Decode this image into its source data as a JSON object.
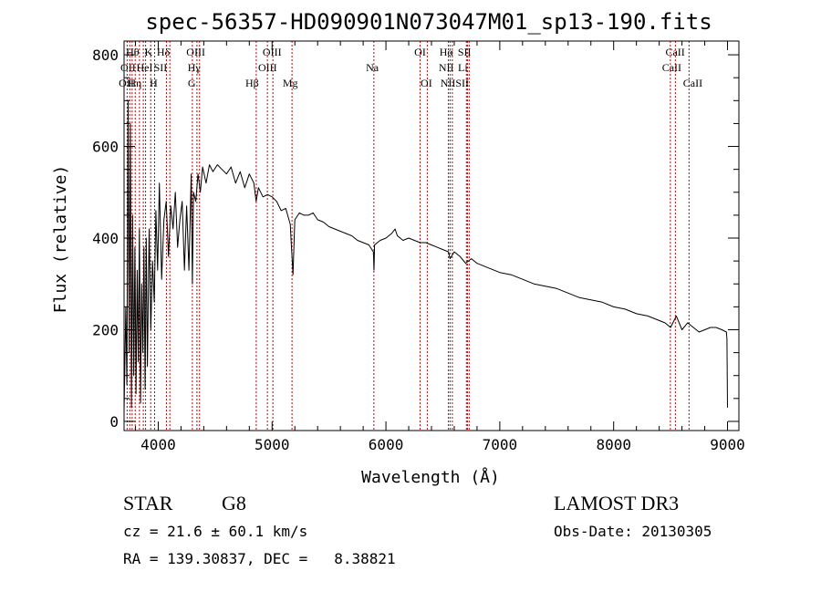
{
  "chart_data": {
    "type": "line",
    "title": "spec-56357-HD090901N073047M01_sp13-190.fits",
    "xlabel": "Wavelength (Å)",
    "ylabel": "Flux (relative)",
    "xlim": [
      3700,
      9100
    ],
    "ylim": [
      -20,
      830
    ],
    "x_ticks": [
      4000,
      5000,
      6000,
      7000,
      8000,
      9000
    ],
    "y_ticks": [
      0,
      200,
      400,
      600,
      800
    ],
    "x_tick_labels": [
      "4000",
      "5000",
      "6000",
      "7000",
      "8000",
      "9000"
    ],
    "y_tick_labels": [
      "0",
      "200",
      "400",
      "600",
      "800"
    ],
    "grid": false,
    "series": [
      {
        "color": "#000000",
        "x": [
          3700,
          3715,
          3725,
          3735,
          3745,
          3755,
          3765,
          3775,
          3785,
          3795,
          3805,
          3815,
          3825,
          3835,
          3845,
          3855,
          3865,
          3875,
          3885,
          3895,
          3905,
          3920,
          3935,
          3950,
          3965,
          3980,
          3995,
          4010,
          4030,
          4050,
          4070,
          4090,
          4110,
          4130,
          4150,
          4170,
          4190,
          4210,
          4230,
          4250,
          4270,
          4290,
          4300,
          4310,
          4330,
          4350,
          4370,
          4390,
          4420,
          4450,
          4480,
          4520,
          4560,
          4600,
          4640,
          4680,
          4720,
          4760,
          4800,
          4840,
          4860,
          4880,
          4920,
          4960,
          5000,
          5040,
          5080,
          5120,
          5160,
          5170,
          5180,
          5184,
          5190,
          5200,
          5240,
          5280,
          5320,
          5360,
          5400,
          5450,
          5500,
          5550,
          5600,
          5650,
          5700,
          5750,
          5800,
          5850,
          5890,
          5895,
          5900,
          5950,
          6000,
          6050,
          6080,
          6100,
          6150,
          6200,
          6250,
          6300,
          6350,
          6400,
          6450,
          6500,
          6550,
          6563,
          6600,
          6650,
          6700,
          6750,
          6800,
          6850,
          6900,
          6950,
          7000,
          7100,
          7200,
          7300,
          7400,
          7500,
          7600,
          7700,
          7800,
          7900,
          8000,
          8100,
          8200,
          8300,
          8400,
          8450,
          8500,
          8550,
          8600,
          8650,
          8700,
          8750,
          8800,
          8850,
          8900,
          8950,
          8990,
          8995,
          9000
        ],
        "values": [
          20,
          250,
          80,
          700,
          150,
          650,
          30,
          450,
          100,
          380,
          60,
          330,
          130,
          420,
          40,
          300,
          150,
          380,
          70,
          400,
          120,
          420,
          200,
          350,
          260,
          460,
          330,
          520,
          310,
          440,
          480,
          360,
          470,
          420,
          500,
          380,
          440,
          480,
          330,
          470,
          330,
          540,
          300,
          500,
          480,
          540,
          500,
          555,
          520,
          560,
          545,
          560,
          550,
          540,
          555,
          520,
          545,
          510,
          540,
          520,
          480,
          510,
          490,
          495,
          490,
          480,
          460,
          465,
          430,
          380,
          340,
          320,
          370,
          440,
          455,
          450,
          450,
          455,
          440,
          435,
          425,
          420,
          415,
          410,
          405,
          395,
          390,
          385,
          370,
          330,
          385,
          395,
          400,
          410,
          420,
          405,
          395,
          400,
          395,
          390,
          390,
          385,
          380,
          375,
          370,
          355,
          370,
          360,
          345,
          355,
          345,
          340,
          335,
          330,
          325,
          320,
          310,
          300,
          295,
          290,
          280,
          270,
          265,
          260,
          250,
          245,
          235,
          230,
          220,
          215,
          205,
          230,
          200,
          215,
          205,
          195,
          200,
          205,
          205,
          200,
          195,
          180,
          30
        ]
      }
    ],
    "lines": [
      {
        "x": 3727,
        "label": "OII"
      },
      {
        "x": 3750,
        "label": "Hθ"
      },
      {
        "x": 3771,
        "label": "Hη"
      },
      {
        "x": 3798,
        "label": "Hθ"
      },
      {
        "x": 3835,
        "label": "Hη"
      },
      {
        "x": 3869,
        "label": "NeIII"
      },
      {
        "x": 3889,
        "label": "HeI"
      },
      {
        "x": 3934,
        "label": "K"
      },
      {
        "x": 3968,
        "label": "H"
      },
      {
        "x": 4072,
        "label": "SII"
      },
      {
        "x": 4102,
        "label": "Hδ"
      },
      {
        "x": 4300,
        "label": "G"
      },
      {
        "x": 4340,
        "label": "Hγ"
      },
      {
        "x": 4363,
        "label": "OIII"
      },
      {
        "x": 4861,
        "label": "Hβ"
      },
      {
        "x": 4959,
        "label": "OIII"
      },
      {
        "x": 5007,
        "label": "OIII"
      },
      {
        "x": 5175,
        "label": "Mg"
      },
      {
        "x": 5894,
        "label": "Na"
      },
      {
        "x": 6300,
        "label": "OI"
      },
      {
        "x": 6363,
        "label": "OI"
      },
      {
        "x": 6548,
        "label": "NII"
      },
      {
        "x": 6563,
        "label": "Hα"
      },
      {
        "x": 6583,
        "label": "NII"
      },
      {
        "x": 6707,
        "label": "Li"
      },
      {
        "x": 6716,
        "label": "SII"
      },
      {
        "x": 6731,
        "label": "SII"
      },
      {
        "x": 8498,
        "label": "CaII"
      },
      {
        "x": 8542,
        "label": "CaII"
      },
      {
        "x": 8662,
        "label": "CaII"
      }
    ],
    "line_labels": [
      {
        "text": "Hθ",
        "row": 0,
        "x": 3775
      },
      {
        "text": "K",
        "row": 0,
        "x": 3915
      },
      {
        "text": "Hδ",
        "row": 0,
        "x": 4045
      },
      {
        "text": "OIII",
        "row": 0,
        "x": 4330
      },
      {
        "text": "OIII",
        "row": 0,
        "x": 5000
      },
      {
        "text": "OI",
        "row": 0,
        "x": 6300
      },
      {
        "text": "Hα",
        "row": 0,
        "x": 6530
      },
      {
        "text": "SII",
        "row": 0,
        "x": 6690
      },
      {
        "text": "CaII",
        "row": 0,
        "x": 8540
      },
      {
        "text": "OII",
        "row": 1,
        "x": 3735
      },
      {
        "text": "HeI",
        "row": 1,
        "x": 3880
      },
      {
        "text": "SII",
        "row": 1,
        "x": 4020
      },
      {
        "text": "Hγ",
        "row": 1,
        "x": 4315
      },
      {
        "text": "OIII",
        "row": 1,
        "x": 4960
      },
      {
        "text": "NII",
        "row": 1,
        "x": 6530
      },
      {
        "text": "Li",
        "row": 1,
        "x": 6675
      },
      {
        "text": "CaII",
        "row": 1,
        "x": 8510
      },
      {
        "text": "OII",
        "row": 2,
        "x": 3720
      },
      {
        "text": "Hη",
        "row": 2,
        "x": 3795
      },
      {
        "text": "H",
        "row": 2,
        "x": 3960
      },
      {
        "text": "G",
        "row": 2,
        "x": 4295
      },
      {
        "text": "Hβ",
        "row": 2,
        "x": 4825
      },
      {
        "text": "Mg",
        "row": 2,
        "x": 5160
      },
      {
        "text": "Na",
        "row": 1,
        "x": 5880
      },
      {
        "text": "OI",
        "row": 2,
        "x": 6355
      },
      {
        "text": "NII",
        "row": 2,
        "x": 6545
      },
      {
        "text": "SII",
        "row": 2,
        "x": 6670
      },
      {
        "text": "CaII",
        "row": 2,
        "x": 8695
      }
    ]
  },
  "info": {
    "object_class": "STAR",
    "subclass": "G8",
    "survey": "LAMOST DR3",
    "cz": "cz = 21.6 ± 60.1 km/s",
    "obs_date": "Obs-Date: 20130305",
    "coords": "RA = 139.30837, DEC =   8.38821"
  },
  "colors": {
    "spectrum": "#000000",
    "line_markers": "#cc0000",
    "axes": "#000000",
    "background": "#ffffff"
  }
}
